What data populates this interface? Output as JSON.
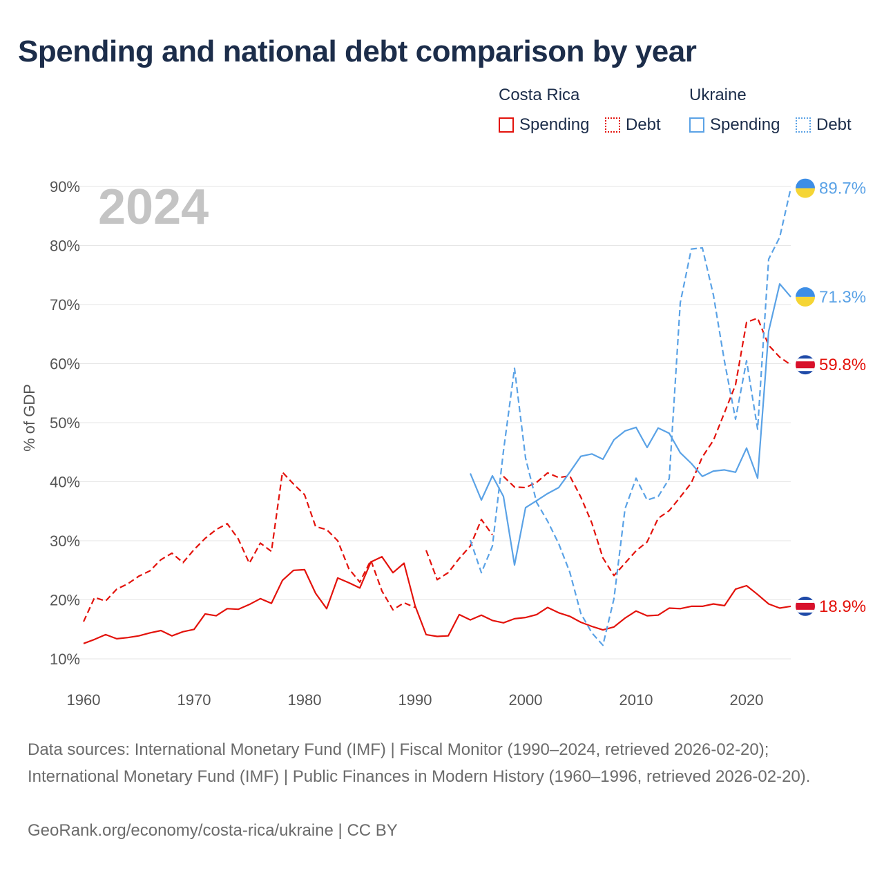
{
  "title": "Spending and national debt comparison by year",
  "legend": {
    "groups": [
      {
        "name": "Costa Rica",
        "items": [
          {
            "label": "Spending",
            "style": "solid",
            "color": "#e3120b"
          },
          {
            "label": "Debt",
            "style": "dotted",
            "color": "#e3120b"
          }
        ]
      },
      {
        "name": "Ukraine",
        "items": [
          {
            "label": "Spending",
            "style": "solid",
            "color": "#5aa2e6"
          },
          {
            "label": "Debt",
            "style": "dotted",
            "color": "#5aa2e6"
          }
        ]
      }
    ]
  },
  "footer": {
    "sources": "Data sources: International Monetary Fund (IMF) | Fiscal Monitor (1990–2024, retrieved 2026-02-20); International Monetary Fund (IMF) | Public Finances in Modern History (1960–1996, retrieved 2026-02-20).",
    "credit": "GeoRank.org/economy/costa-rica/ukraine | CC BY"
  },
  "colors": {
    "costa_rica": "#e3120b",
    "ukraine": "#5aa2e6",
    "grid": "#e6e6e6",
    "flag_cr_blue": "#1f4aa8",
    "flag_cr_red": "#d8112b",
    "flag_ua_blue": "#3d8ee6",
    "flag_ua_yellow": "#f5d535"
  },
  "chart_data": {
    "type": "line",
    "year_label": "2024",
    "ylabel": "% of GDP",
    "xlim": [
      1960,
      2024
    ],
    "ylim": [
      10,
      90
    ],
    "x_ticks": [
      1960,
      1970,
      1980,
      1990,
      2000,
      2010,
      2020
    ],
    "y_ticks": [
      10,
      20,
      30,
      40,
      50,
      60,
      70,
      80,
      90
    ],
    "y_tick_labels": [
      "10%",
      "20%",
      "30%",
      "40%",
      "50%",
      "60%",
      "70%",
      "80%",
      "90%"
    ],
    "series": [
      {
        "name": "Costa Rica Spending",
        "country": "Costa Rica",
        "metric": "Spending",
        "style": "solid",
        "color": "#e3120b",
        "end_label": "18.9%",
        "flag": "costa-rica",
        "points": [
          [
            1960,
            12.6
          ],
          [
            1961,
            13.3
          ],
          [
            1962,
            14.1
          ],
          [
            1963,
            13.4
          ],
          [
            1964,
            13.6
          ],
          [
            1965,
            13.9
          ],
          [
            1966,
            14.4
          ],
          [
            1967,
            14.8
          ],
          [
            1968,
            13.9
          ],
          [
            1969,
            14.6
          ],
          [
            1970,
            15.0
          ],
          [
            1971,
            17.6
          ],
          [
            1972,
            17.3
          ],
          [
            1973,
            18.5
          ],
          [
            1974,
            18.4
          ],
          [
            1975,
            19.2
          ],
          [
            1976,
            20.2
          ],
          [
            1977,
            19.4
          ],
          [
            1978,
            23.3
          ],
          [
            1979,
            25.0
          ],
          [
            1980,
            25.1
          ],
          [
            1981,
            21.1
          ],
          [
            1982,
            18.5
          ],
          [
            1983,
            23.7
          ],
          [
            1984,
            22.9
          ],
          [
            1985,
            22.0
          ],
          [
            1986,
            26.4
          ],
          [
            1987,
            27.3
          ],
          [
            1988,
            24.6
          ],
          [
            1989,
            26.2
          ],
          [
            1990,
            19.0
          ],
          [
            1991,
            14.1
          ],
          [
            1992,
            13.8
          ],
          [
            1993,
            13.9
          ],
          [
            1994,
            17.5
          ],
          [
            1995,
            16.6
          ],
          [
            1996,
            17.4
          ],
          [
            1997,
            16.5
          ],
          [
            1998,
            16.1
          ],
          [
            1999,
            16.8
          ],
          [
            2000,
            17.0
          ],
          [
            2001,
            17.5
          ],
          [
            2002,
            18.7
          ],
          [
            2003,
            17.8
          ],
          [
            2004,
            17.2
          ],
          [
            2005,
            16.2
          ],
          [
            2006,
            15.5
          ],
          [
            2007,
            14.9
          ],
          [
            2008,
            15.4
          ],
          [
            2009,
            16.9
          ],
          [
            2010,
            18.1
          ],
          [
            2011,
            17.3
          ],
          [
            2012,
            17.4
          ],
          [
            2013,
            18.6
          ],
          [
            2014,
            18.5
          ],
          [
            2015,
            18.9
          ],
          [
            2016,
            18.9
          ],
          [
            2017,
            19.3
          ],
          [
            2018,
            19.0
          ],
          [
            2019,
            21.8
          ],
          [
            2020,
            22.4
          ],
          [
            2021,
            20.9
          ],
          [
            2022,
            19.3
          ],
          [
            2023,
            18.6
          ],
          [
            2024,
            18.9
          ]
        ]
      },
      {
        "name": "Costa Rica Debt",
        "country": "Costa Rica",
        "metric": "Debt",
        "style": "dashed",
        "color": "#e3120b",
        "end_label": "59.8%",
        "flag": "costa-rica",
        "segments": [
          [
            [
              1960,
              16.3
            ],
            [
              1961,
              20.4
            ],
            [
              1962,
              19.8
            ],
            [
              1963,
              21.8
            ],
            [
              1964,
              22.7
            ],
            [
              1965,
              24.0
            ],
            [
              1966,
              24.9
            ],
            [
              1967,
              26.8
            ],
            [
              1968,
              27.9
            ],
            [
              1969,
              26.3
            ],
            [
              1970,
              28.5
            ],
            [
              1971,
              30.4
            ],
            [
              1972,
              31.9
            ],
            [
              1973,
              32.9
            ],
            [
              1974,
              30.3
            ],
            [
              1975,
              26.2
            ],
            [
              1976,
              29.6
            ],
            [
              1977,
              28.2
            ],
            [
              1978,
              41.6
            ],
            [
              1979,
              39.6
            ],
            [
              1980,
              37.8
            ],
            [
              1981,
              32.4
            ],
            [
              1982,
              31.9
            ],
            [
              1983,
              30.0
            ],
            [
              1984,
              25.3
            ],
            [
              1985,
              23.0
            ],
            [
              1986,
              26.7
            ],
            [
              1987,
              21.5
            ],
            [
              1988,
              18.3
            ],
            [
              1989,
              19.5
            ],
            [
              1990,
              18.7
            ]
          ],
          [
            [
              1991,
              28.4
            ],
            [
              1992,
              23.4
            ],
            [
              1993,
              24.6
            ],
            [
              1994,
              27.0
            ],
            [
              1995,
              29.1
            ],
            [
              1996,
              33.6
            ],
            [
              1997,
              31.0
            ]
          ],
          [
            [
              1998,
              40.9
            ],
            [
              1999,
              39.1
            ],
            [
              2000,
              39.0
            ],
            [
              2001,
              39.9
            ],
            [
              2002,
              41.5
            ],
            [
              2003,
              40.7
            ],
            [
              2004,
              41.0
            ],
            [
              2005,
              37.4
            ],
            [
              2006,
              33.0
            ],
            [
              2007,
              27.1
            ],
            [
              2008,
              24.1
            ],
            [
              2009,
              26.2
            ],
            [
              2010,
              28.3
            ],
            [
              2011,
              29.8
            ],
            [
              2012,
              33.8
            ],
            [
              2013,
              35.1
            ],
            [
              2014,
              37.4
            ],
            [
              2015,
              39.8
            ],
            [
              2016,
              44.2
            ],
            [
              2017,
              47.0
            ],
            [
              2018,
              51.7
            ],
            [
              2019,
              56.4
            ],
            [
              2020,
              67.0
            ],
            [
              2021,
              67.7
            ],
            [
              2022,
              63.1
            ],
            [
              2023,
              61.1
            ],
            [
              2024,
              59.8
            ]
          ]
        ]
      },
      {
        "name": "Ukraine Spending",
        "country": "Ukraine",
        "metric": "Spending",
        "style": "solid",
        "color": "#5aa2e6",
        "end_label": "71.3%",
        "flag": "ukraine",
        "points": [
          [
            1995,
            41.4
          ],
          [
            1996,
            36.9
          ],
          [
            1997,
            41.0
          ],
          [
            1998,
            37.5
          ],
          [
            1999,
            25.9
          ],
          [
            2000,
            35.6
          ],
          [
            2001,
            36.8
          ],
          [
            2002,
            38.0
          ],
          [
            2003,
            39.0
          ],
          [
            2004,
            41.6
          ],
          [
            2005,
            44.3
          ],
          [
            2006,
            44.7
          ],
          [
            2007,
            43.8
          ],
          [
            2008,
            47.1
          ],
          [
            2009,
            48.6
          ],
          [
            2010,
            49.2
          ],
          [
            2011,
            45.8
          ],
          [
            2012,
            49.1
          ],
          [
            2013,
            48.2
          ],
          [
            2014,
            44.9
          ],
          [
            2015,
            43.1
          ],
          [
            2016,
            40.9
          ],
          [
            2017,
            41.8
          ],
          [
            2018,
            42.0
          ],
          [
            2019,
            41.6
          ],
          [
            2020,
            45.7
          ],
          [
            2021,
            40.6
          ],
          [
            2022,
            65.5
          ],
          [
            2023,
            73.5
          ],
          [
            2024,
            71.3
          ]
        ]
      },
      {
        "name": "Ukraine Debt",
        "country": "Ukraine",
        "metric": "Debt",
        "style": "dashed",
        "color": "#5aa2e6",
        "end_label": "89.7%",
        "flag": "ukraine",
        "points": [
          [
            1995,
            30.1
          ],
          [
            1996,
            24.6
          ],
          [
            1997,
            29.1
          ],
          [
            1998,
            45.2
          ],
          [
            1999,
            59.2
          ],
          [
            2000,
            44.0
          ],
          [
            2001,
            36.5
          ],
          [
            2002,
            33.3
          ],
          [
            2003,
            29.5
          ],
          [
            2004,
            24.7
          ],
          [
            2005,
            17.7
          ],
          [
            2006,
            14.4
          ],
          [
            2007,
            12.3
          ],
          [
            2008,
            20.2
          ],
          [
            2009,
            35.4
          ],
          [
            2010,
            40.6
          ],
          [
            2011,
            36.9
          ],
          [
            2012,
            37.5
          ],
          [
            2013,
            40.5
          ],
          [
            2014,
            70.3
          ],
          [
            2015,
            79.4
          ],
          [
            2016,
            79.6
          ],
          [
            2017,
            71.6
          ],
          [
            2018,
            60.4
          ],
          [
            2019,
            50.6
          ],
          [
            2020,
            60.5
          ],
          [
            2021,
            48.9
          ],
          [
            2022,
            77.7
          ],
          [
            2023,
            81.4
          ],
          [
            2024,
            89.7
          ]
        ]
      }
    ]
  }
}
